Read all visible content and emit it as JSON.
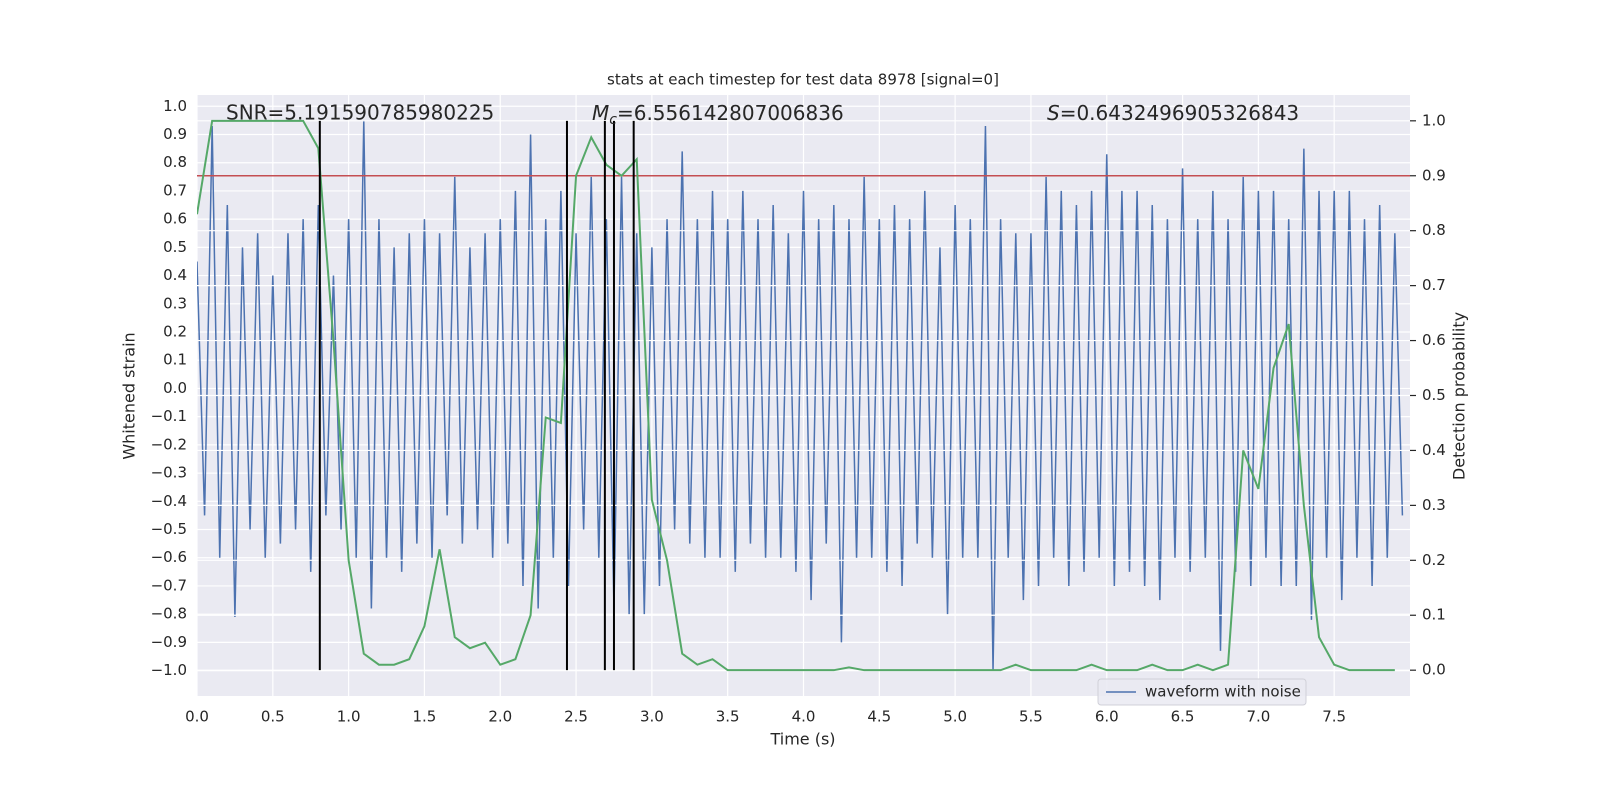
{
  "chart_data": {
    "type": "line",
    "title": "stats at each timestep for test data 8978 [signal=0]",
    "xlabel": "Time (s)",
    "ylabel": "Whitened strain",
    "y2label": "Detection probability",
    "annotations": {
      "snr": "SNR=5.191590785980225",
      "mc": {
        "symbol": "M",
        "subscript": "c",
        "text": "=6.556142807006836"
      },
      "s": {
        "symbol": "S",
        "text": "=0.6432496905326843"
      }
    },
    "xlim": [
      0,
      8.0
    ],
    "xticks": [
      {
        "value": 0,
        "label": "0.0"
      },
      0.5,
      {
        "value": 1,
        "label": "1.0"
      },
      1.5,
      {
        "value": 2,
        "label": "2.0"
      },
      2.5,
      {
        "value": 3,
        "label": "3.0"
      },
      3.5,
      {
        "value": 4,
        "label": "4.0"
      },
      4.5,
      {
        "value": 5,
        "label": "5.0"
      },
      5.5,
      {
        "value": 6,
        "label": "6.0"
      },
      6.5,
      {
        "value": 7,
        "label": "7.0"
      },
      7.5
    ],
    "ylim": [
      -1.09,
      1.04
    ],
    "yticks": [
      {
        "value": 1,
        "label": "1.0"
      },
      0.9,
      0.8,
      0.7,
      0.6,
      0.5,
      0.4,
      0.3,
      0.2,
      0.1,
      {
        "value": 0,
        "label": "0.0"
      },
      {
        "value": -0.1,
        "label": "−0.1"
      },
      {
        "value": -0.2,
        "label": "−0.2"
      },
      {
        "value": -0.3,
        "label": "−0.3"
      },
      {
        "value": -0.4,
        "label": "−0.4"
      },
      {
        "value": -0.5,
        "label": "−0.5"
      },
      {
        "value": -0.6,
        "label": "−0.6"
      },
      {
        "value": -0.7,
        "label": "−0.7"
      },
      {
        "value": -0.8,
        "label": "−0.8"
      },
      {
        "value": -0.9,
        "label": "−0.9"
      },
      {
        "value": -1,
        "label": "−1.0"
      }
    ],
    "y2lim": [
      -0.047,
      1.047
    ],
    "y2ticks": [
      {
        "value": 0,
        "label": "0.0"
      },
      0.1,
      0.2,
      0.3,
      0.4,
      0.5,
      0.6,
      0.7,
      0.8,
      0.9,
      {
        "value": 1,
        "label": "1.0"
      }
    ],
    "grid": true,
    "legend": "lower right",
    "threshold": {
      "value": 0.9,
      "color": "#c44e52",
      "axis": "y2"
    },
    "vlines": {
      "x": [
        0.81,
        2.44,
        2.69,
        2.75,
        2.88
      ],
      "ymin": 0,
      "ymax": 1,
      "color": "#000000",
      "axis": "y2"
    },
    "x": [
      0,
      0.1,
      0.2,
      0.3,
      0.4,
      0.5,
      0.6,
      0.7,
      0.8,
      0.9,
      1.0,
      1.1,
      1.2,
      1.3,
      1.4,
      1.5,
      1.6,
      1.7,
      1.8,
      1.9,
      2.0,
      2.1,
      2.2,
      2.3,
      2.4,
      2.5,
      2.6,
      2.7,
      2.8,
      2.9,
      3.0,
      3.1,
      3.2,
      3.3,
      3.4,
      3.5,
      3.6,
      3.7,
      3.8,
      3.9,
      4.0,
      4.1,
      4.2,
      4.3,
      4.4,
      4.5,
      4.6,
      4.7,
      4.8,
      4.9,
      5.0,
      5.1,
      5.2,
      5.3,
      5.4,
      5.5,
      5.6,
      5.7,
      5.8,
      5.9,
      6.0,
      6.1,
      6.2,
      6.3,
      6.4,
      6.5,
      6.6,
      6.7,
      6.8,
      6.9,
      7.0,
      7.1,
      7.2,
      7.3,
      7.4,
      7.5,
      7.6,
      7.7,
      7.8,
      7.9
    ],
    "series": [
      {
        "name": "waveform with noise",
        "color": "#4c72b0",
        "x": [
          0,
          0.05,
          0.1,
          0.15,
          0.2,
          0.25,
          0.3,
          0.35,
          0.4,
          0.45,
          0.5,
          0.55,
          0.6,
          0.65,
          0.7,
          0.75,
          0.8,
          0.85,
          0.9,
          0.95,
          1.0,
          1.05,
          1.1,
          1.15,
          1.2,
          1.25,
          1.3,
          1.35,
          1.4,
          1.45,
          1.5,
          1.55,
          1.6,
          1.65,
          1.7,
          1.75,
          1.8,
          1.85,
          1.9,
          1.95,
          2.0,
          2.05,
          2.1,
          2.15,
          2.2,
          2.25,
          2.3,
          2.35,
          2.4,
          2.45,
          2.5,
          2.55,
          2.6,
          2.65,
          2.7,
          2.75,
          2.8,
          2.85,
          2.9,
          2.95,
          3.0,
          3.05,
          3.1,
          3.15,
          3.2,
          3.25,
          3.3,
          3.35,
          3.4,
          3.45,
          3.5,
          3.55,
          3.6,
          3.65,
          3.7,
          3.75,
          3.8,
          3.85,
          3.9,
          3.95,
          4.0,
          4.05,
          4.1,
          4.15,
          4.2,
          4.25,
          4.3,
          4.35,
          4.4,
          4.45,
          4.5,
          4.55,
          4.6,
          4.65,
          4.7,
          4.75,
          4.8,
          4.85,
          4.9,
          4.95,
          5.0,
          5.05,
          5.1,
          5.15,
          5.2,
          5.25,
          5.3,
          5.35,
          5.4,
          5.45,
          5.5,
          5.55,
          5.6,
          5.65,
          5.7,
          5.75,
          5.8,
          5.85,
          5.9,
          5.95,
          6.0,
          6.05,
          6.1,
          6.15,
          6.2,
          6.25,
          6.3,
          6.35,
          6.4,
          6.45,
          6.5,
          6.55,
          6.6,
          6.65,
          6.7,
          6.75,
          6.8,
          6.85,
          6.9,
          6.95,
          7.0,
          7.05,
          7.1,
          7.15,
          7.2,
          7.25,
          7.3,
          7.35,
          7.4,
          7.45,
          7.5,
          7.55,
          7.6,
          7.65,
          7.7,
          7.75,
          7.8,
          7.85,
          7.9,
          7.95
        ],
        "values": [
          0.45,
          -0.45,
          0.93,
          -0.6,
          0.65,
          -0.81,
          0.5,
          -0.5,
          0.55,
          -0.6,
          0.4,
          -0.55,
          0.55,
          -0.5,
          0.6,
          -0.65,
          0.65,
          -0.45,
          0.4,
          -0.5,
          0.6,
          -0.6,
          0.95,
          -0.78,
          0.6,
          -0.6,
          0.5,
          -0.65,
          0.55,
          -0.55,
          0.6,
          -0.6,
          0.55,
          -0.45,
          0.75,
          -0.55,
          0.5,
          -0.5,
          0.55,
          -0.6,
          0.6,
          -0.55,
          0.7,
          -0.7,
          0.9,
          -0.78,
          0.6,
          -0.6,
          0.7,
          -0.7,
          0.55,
          -0.5,
          0.75,
          -0.6,
          0.6,
          -0.78,
          0.75,
          -0.8,
          0.55,
          -0.8,
          0.5,
          -0.7,
          0.6,
          -0.5,
          0.84,
          -0.55,
          0.6,
          -0.6,
          0.7,
          -0.6,
          0.6,
          -0.65,
          0.7,
          -0.55,
          0.6,
          -0.6,
          0.65,
          -0.6,
          0.55,
          -0.65,
          0.7,
          -0.75,
          0.6,
          -0.55,
          0.65,
          -0.9,
          0.6,
          -0.6,
          0.75,
          -0.6,
          0.6,
          -0.65,
          0.65,
          -0.7,
          0.6,
          -0.55,
          0.7,
          -0.6,
          0.5,
          -0.8,
          0.65,
          -0.6,
          0.6,
          -0.6,
          0.93,
          -1.0,
          0.6,
          -0.6,
          0.55,
          -0.75,
          0.55,
          -0.7,
          0.75,
          -0.6,
          0.7,
          -0.7,
          0.65,
          -0.65,
          0.7,
          -0.6,
          0.83,
          -0.7,
          0.7,
          -0.65,
          0.7,
          -0.7,
          0.65,
          -0.75,
          0.6,
          -0.6,
          0.78,
          -0.65,
          0.6,
          -0.6,
          0.7,
          -0.93,
          0.6,
          -0.65,
          0.75,
          -0.7,
          0.7,
          -0.6,
          0.7,
          -0.7,
          0.6,
          -0.7,
          0.85,
          -0.82,
          0.7,
          -0.6,
          0.7,
          -0.75,
          0.7,
          -0.6,
          0.6,
          -0.7,
          0.65,
          -0.6,
          0.55,
          -0.45
        ]
      },
      {
        "color": "#55a868",
        "axis": "y2",
        "values": [
          0.83,
          1,
          1,
          1,
          1,
          1,
          1,
          1,
          0.95,
          0.6,
          0.2,
          0.03,
          0.01,
          0.01,
          0.02,
          0.08,
          0.22,
          0.06,
          0.04,
          0.05,
          0.01,
          0.02,
          0.1,
          0.46,
          0.45,
          0.9,
          0.97,
          0.92,
          0.9,
          0.93,
          0.31,
          0.2,
          0.03,
          0.01,
          0.02,
          0,
          0,
          0,
          0,
          0,
          0,
          0,
          0,
          0.005,
          0,
          0,
          0,
          0,
          0,
          0,
          0,
          0,
          0,
          0,
          0.01,
          0,
          0,
          0,
          0,
          0.01,
          0,
          0,
          0,
          0.01,
          0,
          0,
          0.01,
          0,
          0.01,
          0.4,
          0.33,
          0.55,
          0.63,
          0.3,
          0.06,
          0.01,
          0,
          0,
          0,
          0
        ]
      }
    ]
  }
}
